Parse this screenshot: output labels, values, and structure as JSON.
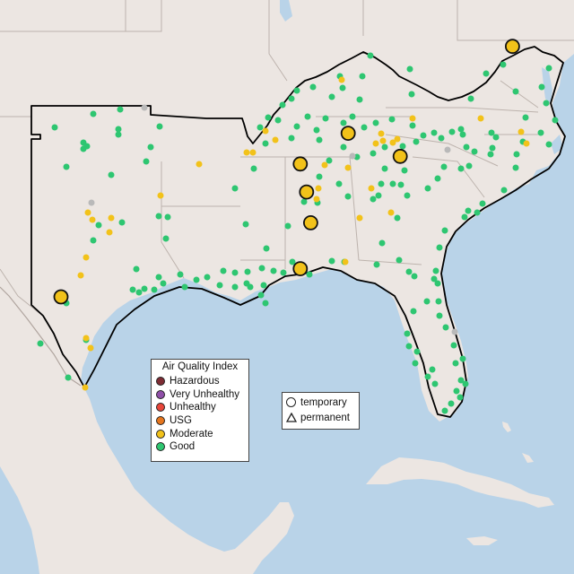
{
  "legend_aqi": {
    "title": "Air Quality Index",
    "levels": [
      {
        "label": "Hazardous",
        "color": "#7e2c34"
      },
      {
        "label": "Very Unhealthy",
        "color": "#8f4fa8"
      },
      {
        "label": "Unhealthy",
        "color": "#e8463a"
      },
      {
        "label": "USG",
        "color": "#e6761e"
      },
      {
        "label": "Moderate",
        "color": "#f2c21a"
      },
      {
        "label": "Good",
        "color": "#2ec671"
      }
    ]
  },
  "legend_type": {
    "temporary": "temporary",
    "permanent": "permanent"
  },
  "colors": {
    "water": "#b9d3e8",
    "land": "#ece6e2",
    "border": "#bdb3ad",
    "region_outline": "#000000",
    "good": "#2ec671",
    "moderate": "#f2c21a",
    "nodata": "#b9b9b9"
  },
  "large_monitors": [
    {
      "label": "temporary monitor",
      "category": "Moderate",
      "lon": -76.6,
      "lat": 39.3
    },
    {
      "label": "temporary monitor",
      "category": "Moderate",
      "lon": -84.5,
      "lat": 35.9
    },
    {
      "label": "temporary monitor",
      "category": "Moderate",
      "lon": -82.0,
      "lat": 35.0
    },
    {
      "label": "temporary monitor",
      "category": "Moderate",
      "lon": -86.8,
      "lat": 34.7
    },
    {
      "label": "temporary monitor",
      "category": "Moderate",
      "lon": -86.5,
      "lat": 33.6
    },
    {
      "label": "temporary monitor",
      "category": "Moderate",
      "lon": -86.3,
      "lat": 32.4
    },
    {
      "label": "temporary monitor",
      "category": "Moderate",
      "lon": -86.8,
      "lat": 30.6
    },
    {
      "label": "temporary monitor",
      "category": "Moderate",
      "lon": -98.3,
      "lat": 29.5
    }
  ]
}
